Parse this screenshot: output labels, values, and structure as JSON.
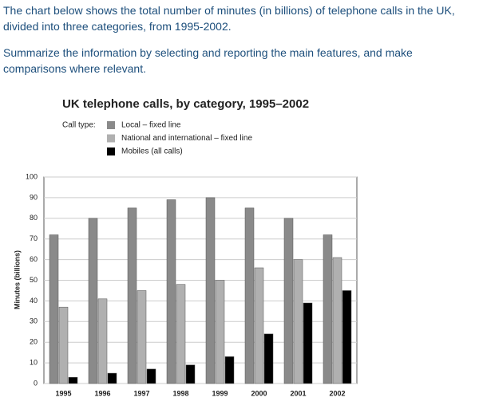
{
  "prompt": [
    "The chart below shows the total number of minutes (in billions) of telephone calls in the UK, divided into three categories, from 1995-2002.",
    "Summarize the information by selecting and reporting the main features, and make comparisons where relevant."
  ],
  "chart_data": {
    "type": "bar",
    "title": "UK telephone calls, by category, 1995–2002",
    "legend_title": "Call type:",
    "ylabel": "Minutes (billions)",
    "categories": [
      "1995",
      "1996",
      "1997",
      "1998",
      "1999",
      "2000",
      "2001",
      "2002"
    ],
    "series": [
      {
        "name": "Local – fixed line",
        "color": "#8a8a8a",
        "values": [
          72,
          80,
          85,
          89,
          90,
          85,
          80,
          72
        ]
      },
      {
        "name": "National and international – fixed line",
        "color": "#b0b0b0",
        "values": [
          37,
          41,
          45,
          48,
          50,
          56,
          60,
          61
        ]
      },
      {
        "name": "Mobiles (all calls)",
        "color": "#000000",
        "values": [
          3,
          5,
          7,
          9,
          13,
          24,
          39,
          45
        ]
      }
    ],
    "ylim": [
      0,
      100
    ],
    "yticks": [
      0,
      10,
      20,
      30,
      40,
      50,
      60,
      70,
      80,
      90,
      100
    ],
    "grid": true
  }
}
